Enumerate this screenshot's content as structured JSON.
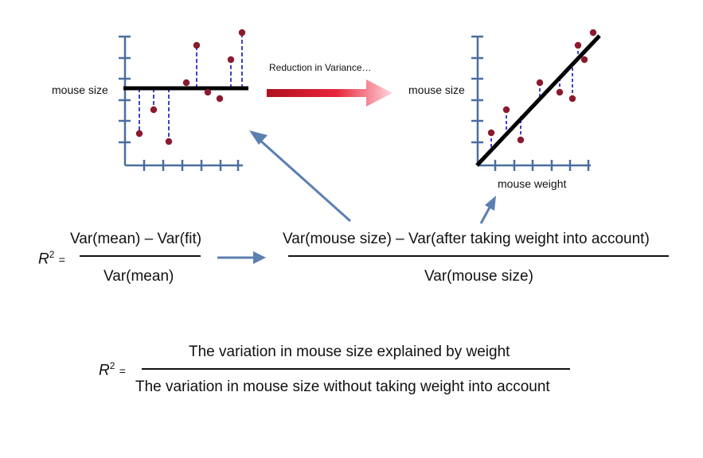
{
  "left_plot": {
    "ylabel": "mouse size"
  },
  "right_plot": {
    "ylabel": "mouse size",
    "xlabel": "mouse weight"
  },
  "arrow_label": "Reduction in Variance…",
  "colors": {
    "point": "#8b1a2e",
    "residual": "#4040d0",
    "arrow_blue": "#5b7fb0",
    "arrow_red": "#cc1020",
    "axis": "#4a6ea0"
  },
  "formula1": {
    "symbol": "R",
    "exponent": "2",
    "equals": "=",
    "numerator": "Var(mean) – Var(fit)",
    "denominator": "Var(mean)"
  },
  "formula2": {
    "numerator": "Var(mouse size) – Var(after taking weight into account)",
    "denominator": "Var(mouse size)"
  },
  "formula3": {
    "symbol": "R",
    "exponent": "2",
    "equals": "=",
    "numerator": "The variation in mouse size explained by weight",
    "denominator": "The variation in mouse size without taking weight into account"
  }
}
